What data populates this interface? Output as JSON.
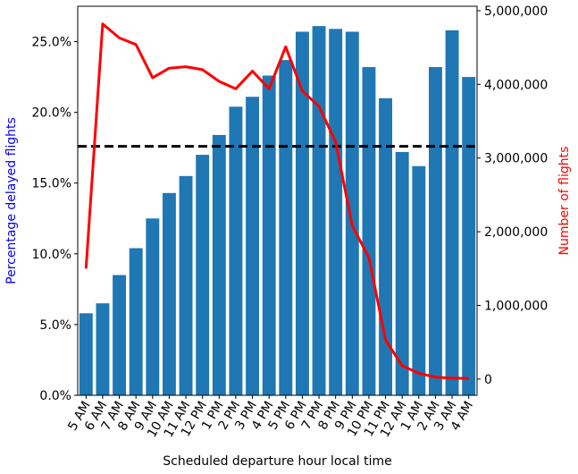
{
  "chart_data": {
    "type": "bar",
    "xlabel": "Scheduled departure hour local time",
    "ylabel_left": "Percentage delayed flights",
    "ylabel_right": "Number of flights",
    "ylabel_left_color": "#0000ff",
    "ylabel_right_color": "#ff0000",
    "categories": [
      "5 AM",
      "6 AM",
      "7 AM",
      "8 AM",
      "9 AM",
      "10 AM",
      "11 AM",
      "12 PM",
      "1 PM",
      "2 PM",
      "3 PM",
      "4 PM",
      "5 PM",
      "6 PM",
      "7 PM",
      "8 PM",
      "9 PM",
      "10 PM",
      "11 PM",
      "12 AM",
      "1 AM",
      "2 AM",
      "3 AM",
      "4 AM"
    ],
    "series": [
      {
        "type": "bar",
        "axis": "left",
        "color": "#1f77b4",
        "values": [
          5.8,
          6.5,
          8.5,
          10.4,
          12.5,
          14.3,
          15.5,
          17.0,
          18.4,
          20.4,
          21.1,
          22.6,
          23.7,
          25.7,
          26.1,
          25.9,
          25.7,
          23.2,
          21.0,
          17.2,
          16.2,
          23.2,
          25.8,
          22.5
        ]
      },
      {
        "type": "line",
        "axis": "right",
        "color": "#ff0000",
        "values": [
          1500000,
          4820000,
          4630000,
          4540000,
          4090000,
          4220000,
          4240000,
          4200000,
          4040000,
          3940000,
          4180000,
          3940000,
          4510000,
          3910000,
          3700000,
          3220000,
          2080000,
          1650000,
          530000,
          180000,
          80000,
          25000,
          12000,
          10000
        ]
      }
    ],
    "reference_line": {
      "axis": "left",
      "value": 17.6,
      "style": "dashed",
      "color": "#000000"
    },
    "ylim_left": [
      0,
      27.5
    ],
    "ylim_right": [
      -220000,
      5060000
    ],
    "yticks_left": [
      {
        "v": 0,
        "label": "0.0%"
      },
      {
        "v": 5,
        "label": "5.0%"
      },
      {
        "v": 10,
        "label": "10.0%"
      },
      {
        "v": 15,
        "label": "15.0%"
      },
      {
        "v": 20,
        "label": "20.0%"
      },
      {
        "v": 25,
        "label": "25.0%"
      }
    ],
    "yticks_right": [
      {
        "v": 0,
        "label": "0"
      },
      {
        "v": 1000000,
        "label": "1,000,000"
      },
      {
        "v": 2000000,
        "label": "2,000,000"
      },
      {
        "v": 3000000,
        "label": "3,000,000"
      },
      {
        "v": 4000000,
        "label": "4,000,000"
      },
      {
        "v": 5000000,
        "label": "5,000,000"
      }
    ],
    "grid": false,
    "legend": "none"
  }
}
